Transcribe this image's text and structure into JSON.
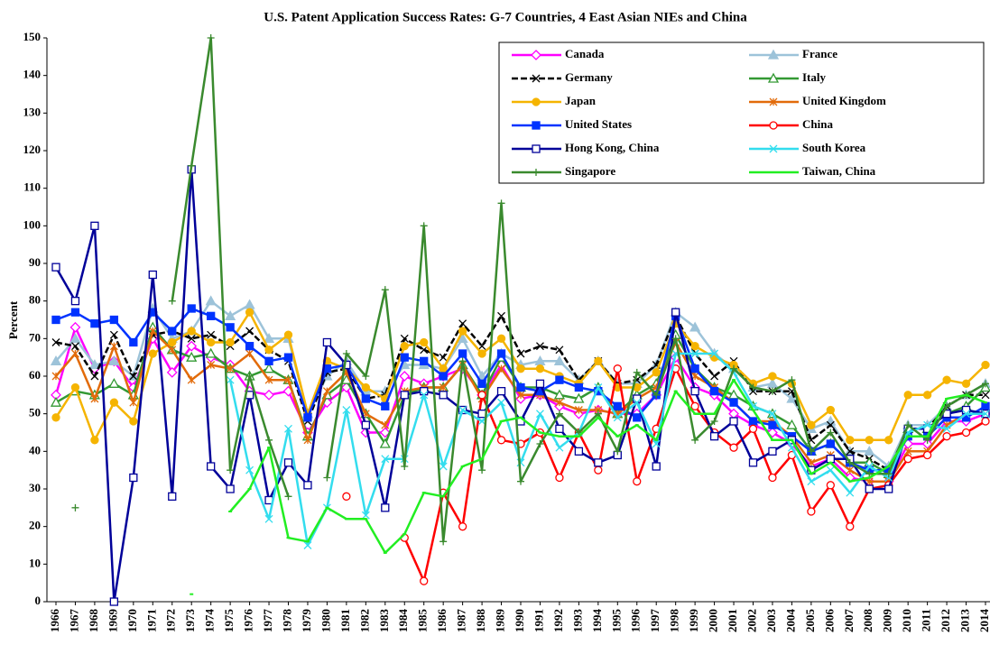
{
  "chart_data": {
    "type": "line",
    "title": "U.S. Patent Application Success Rates: G-7 Countries, 4 East Asian NIEs and China",
    "y_label": "Percent",
    "categories": [
      "1966",
      "1967",
      "1968",
      "1969",
      "1970",
      "1971",
      "1972",
      "1973",
      "1974",
      "1975",
      "1976",
      "1977",
      "1978",
      "1979",
      "1980",
      "1981",
      "1982",
      "1983",
      "1984",
      "1985",
      "1986",
      "1987",
      "1988",
      "1989",
      "1990",
      "1991",
      "1992",
      "1993",
      "1994",
      "1995",
      "1996",
      "1997",
      "1998",
      "1999",
      "2000",
      "2001",
      "2002",
      "2003",
      "2004",
      "2005",
      "2006",
      "2007",
      "2008",
      "2009",
      "2010",
      "2011",
      "2012",
      "2013",
      "2014"
    ],
    "ylim": [
      0,
      150
    ],
    "yticks": [
      0,
      10,
      20,
      30,
      40,
      50,
      60,
      70,
      80,
      90,
      100,
      110,
      120,
      130,
      140,
      150
    ],
    "legend": "upper right",
    "series": [
      {
        "name": "Canada",
        "color": "#ff00ff",
        "marker": "diamond-open",
        "values": [
          55,
          73,
          62,
          64,
          57,
          70,
          61,
          68,
          65,
          63,
          56,
          55,
          56,
          45,
          53,
          57,
          45,
          45,
          60,
          58,
          60,
          62,
          55,
          63,
          54,
          55,
          52,
          50,
          51,
          50,
          50,
          55,
          65,
          57,
          55,
          50,
          47,
          45,
          42,
          36,
          38,
          33,
          32,
          32,
          42,
          42,
          48,
          48,
          50
        ]
      },
      {
        "name": "France",
        "color": "#9dc3d9",
        "marker": "triangle",
        "values": [
          64,
          70,
          63,
          64,
          60,
          78,
          70,
          72,
          80,
          76,
          79,
          70,
          70,
          50,
          60,
          64,
          56,
          56,
          63,
          63,
          62,
          70,
          60,
          66,
          63,
          64,
          64,
          59,
          64,
          58,
          58,
          63,
          77,
          73,
          66,
          62,
          57,
          58,
          54,
          46,
          48,
          40,
          40,
          36,
          47,
          47,
          52,
          55,
          58
        ]
      },
      {
        "name": "Germany",
        "color": "#000000",
        "marker": "x",
        "line_style": "dashed",
        "values": [
          69,
          68,
          60,
          71,
          60,
          71,
          72,
          70,
          71,
          68,
          72,
          67,
          64,
          48,
          61,
          62,
          54,
          55,
          70,
          67,
          65,
          74,
          68,
          76,
          66,
          68,
          67,
          59,
          64,
          58,
          59,
          63,
          76,
          66,
          60,
          64,
          56,
          56,
          56,
          43,
          47,
          40,
          38,
          35,
          46,
          46,
          52,
          55,
          55
        ]
      },
      {
        "name": "Italy",
        "color": "#339933",
        "marker": "triangle-open",
        "values": [
          53,
          56,
          55,
          58,
          55,
          73,
          67,
          65,
          66,
          62,
          60,
          62,
          59,
          44,
          55,
          59,
          50,
          42,
          55,
          57,
          57,
          63,
          55,
          65,
          57,
          57,
          55,
          54,
          57,
          50,
          55,
          58,
          71,
          62,
          57,
          55,
          52,
          50,
          47,
          40,
          42,
          37,
          37,
          34,
          46,
          46,
          50,
          52,
          57
        ]
      },
      {
        "name": "Japan",
        "color": "#f5b400",
        "marker": "circle",
        "values": [
          49,
          57,
          43,
          53,
          48,
          66,
          69,
          72,
          69,
          69,
          77,
          67,
          71,
          50,
          64,
          62,
          57,
          54,
          68,
          69,
          62,
          72,
          66,
          70,
          62,
          62,
          60,
          58,
          64,
          57,
          57,
          61,
          74,
          68,
          65,
          63,
          58,
          60,
          58,
          47,
          51,
          43,
          43,
          43,
          55,
          55,
          59,
          58,
          63
        ]
      },
      {
        "name": "United Kingdom",
        "color": "#e26b0a",
        "marker": "asterisk",
        "values": [
          60,
          66,
          54,
          68,
          53,
          72,
          67,
          59,
          63,
          62,
          66,
          59,
          59,
          43,
          56,
          61,
          50,
          47,
          56,
          57,
          57,
          63,
          54,
          62,
          55,
          55,
          53,
          51,
          51,
          50,
          54,
          57,
          69,
          60,
          57,
          53,
          48,
          48,
          44,
          37,
          39,
          35,
          32,
          32,
          40,
          40,
          47,
          50,
          50
        ]
      },
      {
        "name": "United States",
        "color": "#0033ff",
        "marker": "square",
        "values": [
          75,
          77,
          74,
          75,
          69,
          77,
          72,
          78,
          76,
          73,
          68,
          64,
          65,
          49,
          62,
          63,
          54,
          52,
          65,
          64,
          60,
          66,
          58,
          66,
          57,
          56,
          59,
          57,
          56,
          52,
          49,
          55,
          76,
          62,
          56,
          53,
          48,
          47,
          44,
          40,
          42,
          37,
          35,
          35,
          44,
          44,
          49,
          49,
          52
        ]
      },
      {
        "name": "China",
        "color": "#ff0000",
        "marker": "circle-open",
        "values": [
          null,
          null,
          null,
          null,
          null,
          null,
          null,
          null,
          null,
          null,
          null,
          null,
          null,
          null,
          null,
          28,
          null,
          null,
          17,
          5.5,
          29,
          20,
          55,
          43,
          42,
          45,
          33,
          45,
          35,
          62,
          32,
          46,
          62,
          52,
          45,
          41,
          46,
          33,
          39,
          24,
          31,
          20,
          30,
          31,
          38,
          39,
          44,
          45,
          48
        ]
      },
      {
        "name": "Hong Kong, China",
        "color": "#000099",
        "marker": "square-open",
        "values": [
          89,
          80,
          100,
          0,
          33,
          87,
          28,
          115,
          36,
          30,
          55,
          27,
          37,
          31,
          69,
          63,
          47,
          25,
          55,
          56,
          55,
          51,
          50,
          56,
          48,
          58,
          46,
          40,
          37,
          39,
          54,
          36,
          77,
          56,
          44,
          48,
          37,
          40,
          43,
          35,
          38,
          38,
          30,
          30,
          46,
          46,
          50,
          51,
          50
        ]
      },
      {
        "name": "South Korea",
        "color": "#33ddee",
        "marker": "x",
        "values": [
          null,
          null,
          null,
          null,
          null,
          null,
          null,
          null,
          null,
          59,
          35,
          22,
          46,
          15,
          25,
          51,
          23,
          38,
          38,
          55,
          36,
          51,
          48,
          53,
          37,
          50,
          41,
          45,
          57,
          49,
          53,
          42,
          66,
          66,
          66,
          61,
          52,
          50,
          41,
          32,
          35,
          29,
          36,
          33,
          45,
          47,
          46,
          50,
          50
        ]
      },
      {
        "name": "Singapore",
        "color": "#3a8a2e",
        "marker": "plus",
        "values": [
          null,
          25,
          null,
          null,
          null,
          null,
          80,
          116,
          150,
          35,
          60,
          43,
          28,
          null,
          33,
          66,
          60,
          83,
          36,
          100,
          16,
          64,
          35,
          106,
          32,
          42,
          50,
          45,
          50,
          40,
          61,
          55,
          70,
          43,
          48,
          62,
          57,
          56,
          59,
          40,
          45,
          37,
          34,
          34,
          47,
          43,
          52,
          55,
          58
        ]
      },
      {
        "name": "Taiwan, China",
        "color": "#22ee22",
        "marker": "dash",
        "values": [
          null,
          null,
          null,
          null,
          null,
          null,
          null,
          2,
          null,
          24,
          30,
          41,
          17,
          16,
          25,
          22,
          22,
          13,
          18,
          29,
          28,
          36,
          38,
          48,
          49,
          45,
          44,
          44,
          49,
          44,
          47,
          43,
          56,
          50,
          50,
          59,
          51,
          43,
          43,
          34,
          37,
          32,
          33,
          36,
          44,
          44,
          54,
          55,
          53
        ]
      }
    ]
  }
}
